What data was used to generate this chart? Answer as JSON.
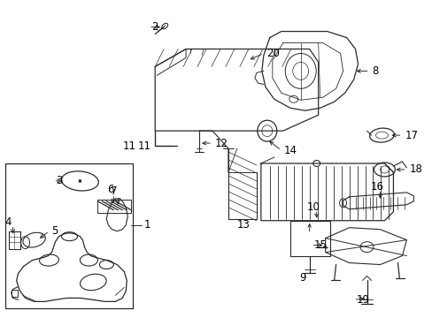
{
  "background_color": "#ffffff",
  "line_color": "#2a2a2a",
  "text_color": "#000000",
  "font_size": 8.5,
  "fig_width": 4.89,
  "fig_height": 3.6,
  "dpi": 100
}
